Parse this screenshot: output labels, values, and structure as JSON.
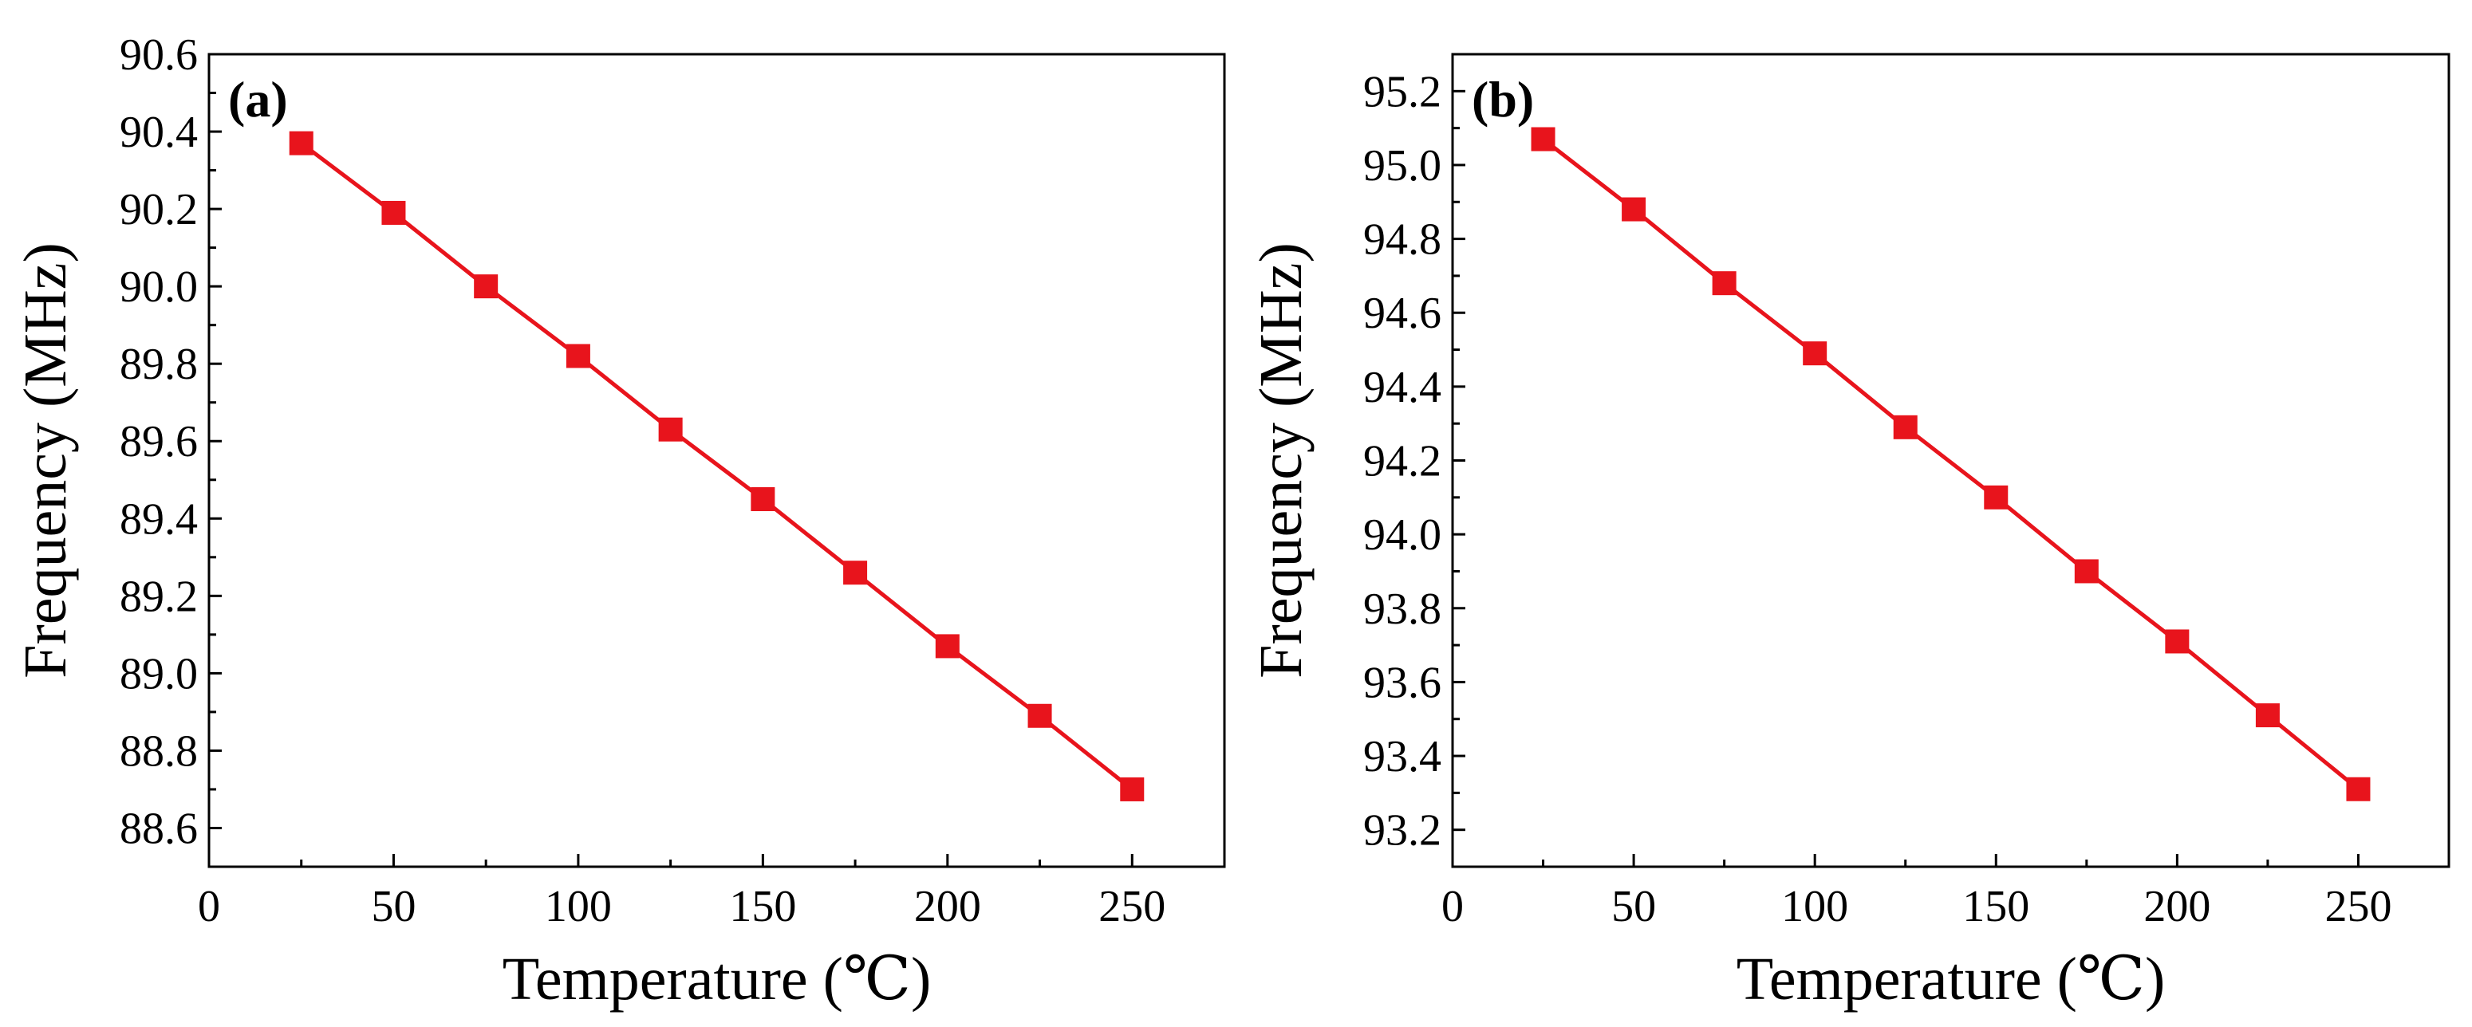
{
  "chart_data": [
    {
      "type": "line",
      "panel_label": "(a)",
      "xlabel": "Temperature (℃)",
      "ylabel": "Frequency (MHz)",
      "xlim": [
        0,
        275
      ],
      "ylim": [
        88.5,
        90.6
      ],
      "xticks": [
        0,
        50,
        100,
        150,
        200,
        250
      ],
      "xtick_labels": [
        "0",
        "50",
        "100",
        "150",
        "200",
        "250"
      ],
      "yticks": [
        88.6,
        88.8,
        89.0,
        89.2,
        89.4,
        89.6,
        89.8,
        90.0,
        90.2,
        90.4,
        90.6
      ],
      "ytick_labels": [
        "88.6",
        "88.8",
        "89.0",
        "89.2",
        "89.4",
        "89.6",
        "89.8",
        "90.0",
        "90.2",
        "90.4",
        "90.6"
      ],
      "grid": false,
      "series": [
        {
          "name": "frequency",
          "color": "#e8141c",
          "marker": "square",
          "x": [
            25,
            50,
            75,
            100,
            125,
            150,
            175,
            200,
            225,
            250
          ],
          "y": [
            90.37,
            90.19,
            90.0,
            89.82,
            89.63,
            89.45,
            89.26,
            89.07,
            88.89,
            88.7
          ]
        }
      ]
    },
    {
      "type": "line",
      "panel_label": "(b)",
      "xlabel": "Temperature (℃)",
      "ylabel": "Frequency (MHz)",
      "xlim": [
        0,
        275
      ],
      "ylim": [
        93.1,
        95.3
      ],
      "xticks": [
        0,
        50,
        100,
        150,
        200,
        250
      ],
      "xtick_labels": [
        "0",
        "50",
        "100",
        "150",
        "200",
        "250"
      ],
      "yticks": [
        93.2,
        93.4,
        93.6,
        93.8,
        94.0,
        94.2,
        94.4,
        94.6,
        94.8,
        95.0,
        95.2
      ],
      "ytick_labels": [
        "93.2",
        "93.4",
        "93.6",
        "93.8",
        "94.0",
        "94.2",
        "94.4",
        "94.6",
        "94.8",
        "95.0",
        "95.2"
      ],
      "grid": false,
      "series": [
        {
          "name": "frequency",
          "color": "#e8141c",
          "marker": "square",
          "x": [
            25,
            50,
            75,
            100,
            125,
            150,
            175,
            200,
            225,
            250
          ],
          "y": [
            95.07,
            94.88,
            94.68,
            94.49,
            94.29,
            94.1,
            93.9,
            93.71,
            93.51,
            93.31
          ]
        }
      ]
    }
  ]
}
